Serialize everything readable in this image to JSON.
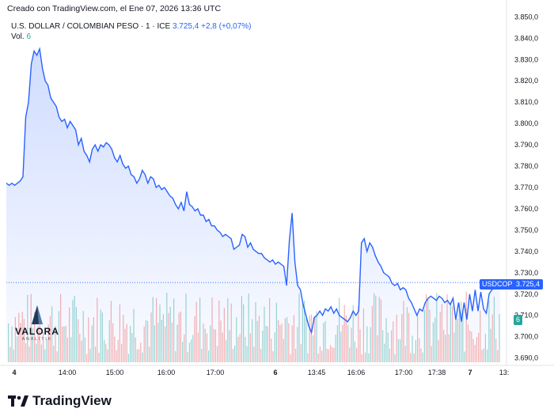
{
  "caption": "Creado con TradingView.com, el Ene 07, 2026 13:36 UTC",
  "legend": {
    "symbol_name": "U.S. DOLLAR / COLOMBIAN PESO · 1 · ICE",
    "last_price": "3.725,4",
    "change": "+2,8 (+0,07%)",
    "volume_label": "Vol.",
    "volume_value": "6"
  },
  "badges": {
    "symbol": "USDCOP",
    "price": "3.725,4",
    "volume": "6"
  },
  "watermark": {
    "name": "VALORA",
    "sub": "ANALITIK"
  },
  "brand": {
    "name": "TradingView"
  },
  "colors": {
    "line": "#2962ff",
    "area_top": "#2962ff",
    "vol_up": "#26a69a",
    "vol_down": "#ef5350",
    "text": "#131722",
    "axis_text": "#131722"
  },
  "chart_data": {
    "type": "area",
    "title": "U.S. DOLLAR / COLOMBIAN PESO · 1 · ICE",
    "x_tick_labels": [
      "4",
      "14:00",
      "15:00",
      "16:00",
      "17:00",
      "6",
      "13:45",
      "16:06",
      "17:00",
      "17:38",
      "7",
      "13:"
    ],
    "y_tick_labels": [
      "3.690,0",
      "3.700,0",
      "3.710,0",
      "3.720,0",
      "3.730,0",
      "3.740,0",
      "3.750,0",
      "3.760,0",
      "3.770,0",
      "3.780,0",
      "3.790,0",
      "3.800,0",
      "3.810,0",
      "3.820,0",
      "3.830,0",
      "3.840,0",
      "3.850,0"
    ],
    "y_ticks": [
      3690,
      3700,
      3710,
      3720,
      3730,
      3740,
      3750,
      3760,
      3770,
      3780,
      3790,
      3800,
      3810,
      3820,
      3830,
      3840,
      3850
    ],
    "ylim": [
      3688,
      3852
    ],
    "current_price": 3725.4,
    "series": [
      {
        "name": "USDCOP",
        "values": [
          3772,
          3771,
          3772,
          3771,
          3772,
          3773,
          3775,
          3803,
          3810,
          3828,
          3834,
          3832,
          3835,
          3826,
          3820,
          3818,
          3812,
          3810,
          3808,
          3803,
          3801,
          3802,
          3798,
          3801,
          3799,
          3797,
          3790,
          3793,
          3787,
          3785,
          3782,
          3788,
          3790,
          3787,
          3790,
          3789,
          3791,
          3790,
          3788,
          3784,
          3782,
          3785,
          3781,
          3779,
          3780,
          3776,
          3775,
          3772,
          3774,
          3778,
          3776,
          3772,
          3775,
          3774,
          3770,
          3771,
          3769,
          3770,
          3768,
          3766,
          3765,
          3762,
          3760,
          3763,
          3759,
          3768,
          3762,
          3761,
          3759,
          3760,
          3757,
          3757,
          3754,
          3755,
          3752,
          3752,
          3750,
          3749,
          3747,
          3748,
          3747,
          3746,
          3741,
          3742,
          3743,
          3748,
          3747,
          3742,
          3744,
          3741,
          3740,
          3739,
          3739,
          3737,
          3736,
          3735,
          3736,
          3734,
          3735,
          3734,
          3733,
          3724,
          3745,
          3758,
          3735,
          3724,
          3722,
          3715,
          3710,
          3705,
          3702,
          3709,
          3710,
          3712,
          3710,
          3713,
          3712,
          3714,
          3711,
          3713,
          3710,
          3709,
          3708,
          3707,
          3709,
          3712,
          3710,
          3712,
          3744,
          3746,
          3740,
          3744,
          3742,
          3738,
          3735,
          3733,
          3730,
          3729,
          3728,
          3725,
          3724,
          3725,
          3722,
          3723,
          3722,
          3718,
          3716,
          3713,
          3710,
          3713,
          3712,
          3716,
          3718,
          3719,
          3718,
          3717,
          3719,
          3718,
          3716,
          3717,
          3715,
          3718,
          3708,
          3716,
          3707,
          3716,
          3708,
          3720,
          3712,
          3722,
          3712,
          3721,
          3713,
          3711,
          3720,
          3722,
          3723,
          3725,
          3725.4
        ]
      }
    ],
    "volume": {
      "name": "Vol.",
      "last": 6
    }
  }
}
